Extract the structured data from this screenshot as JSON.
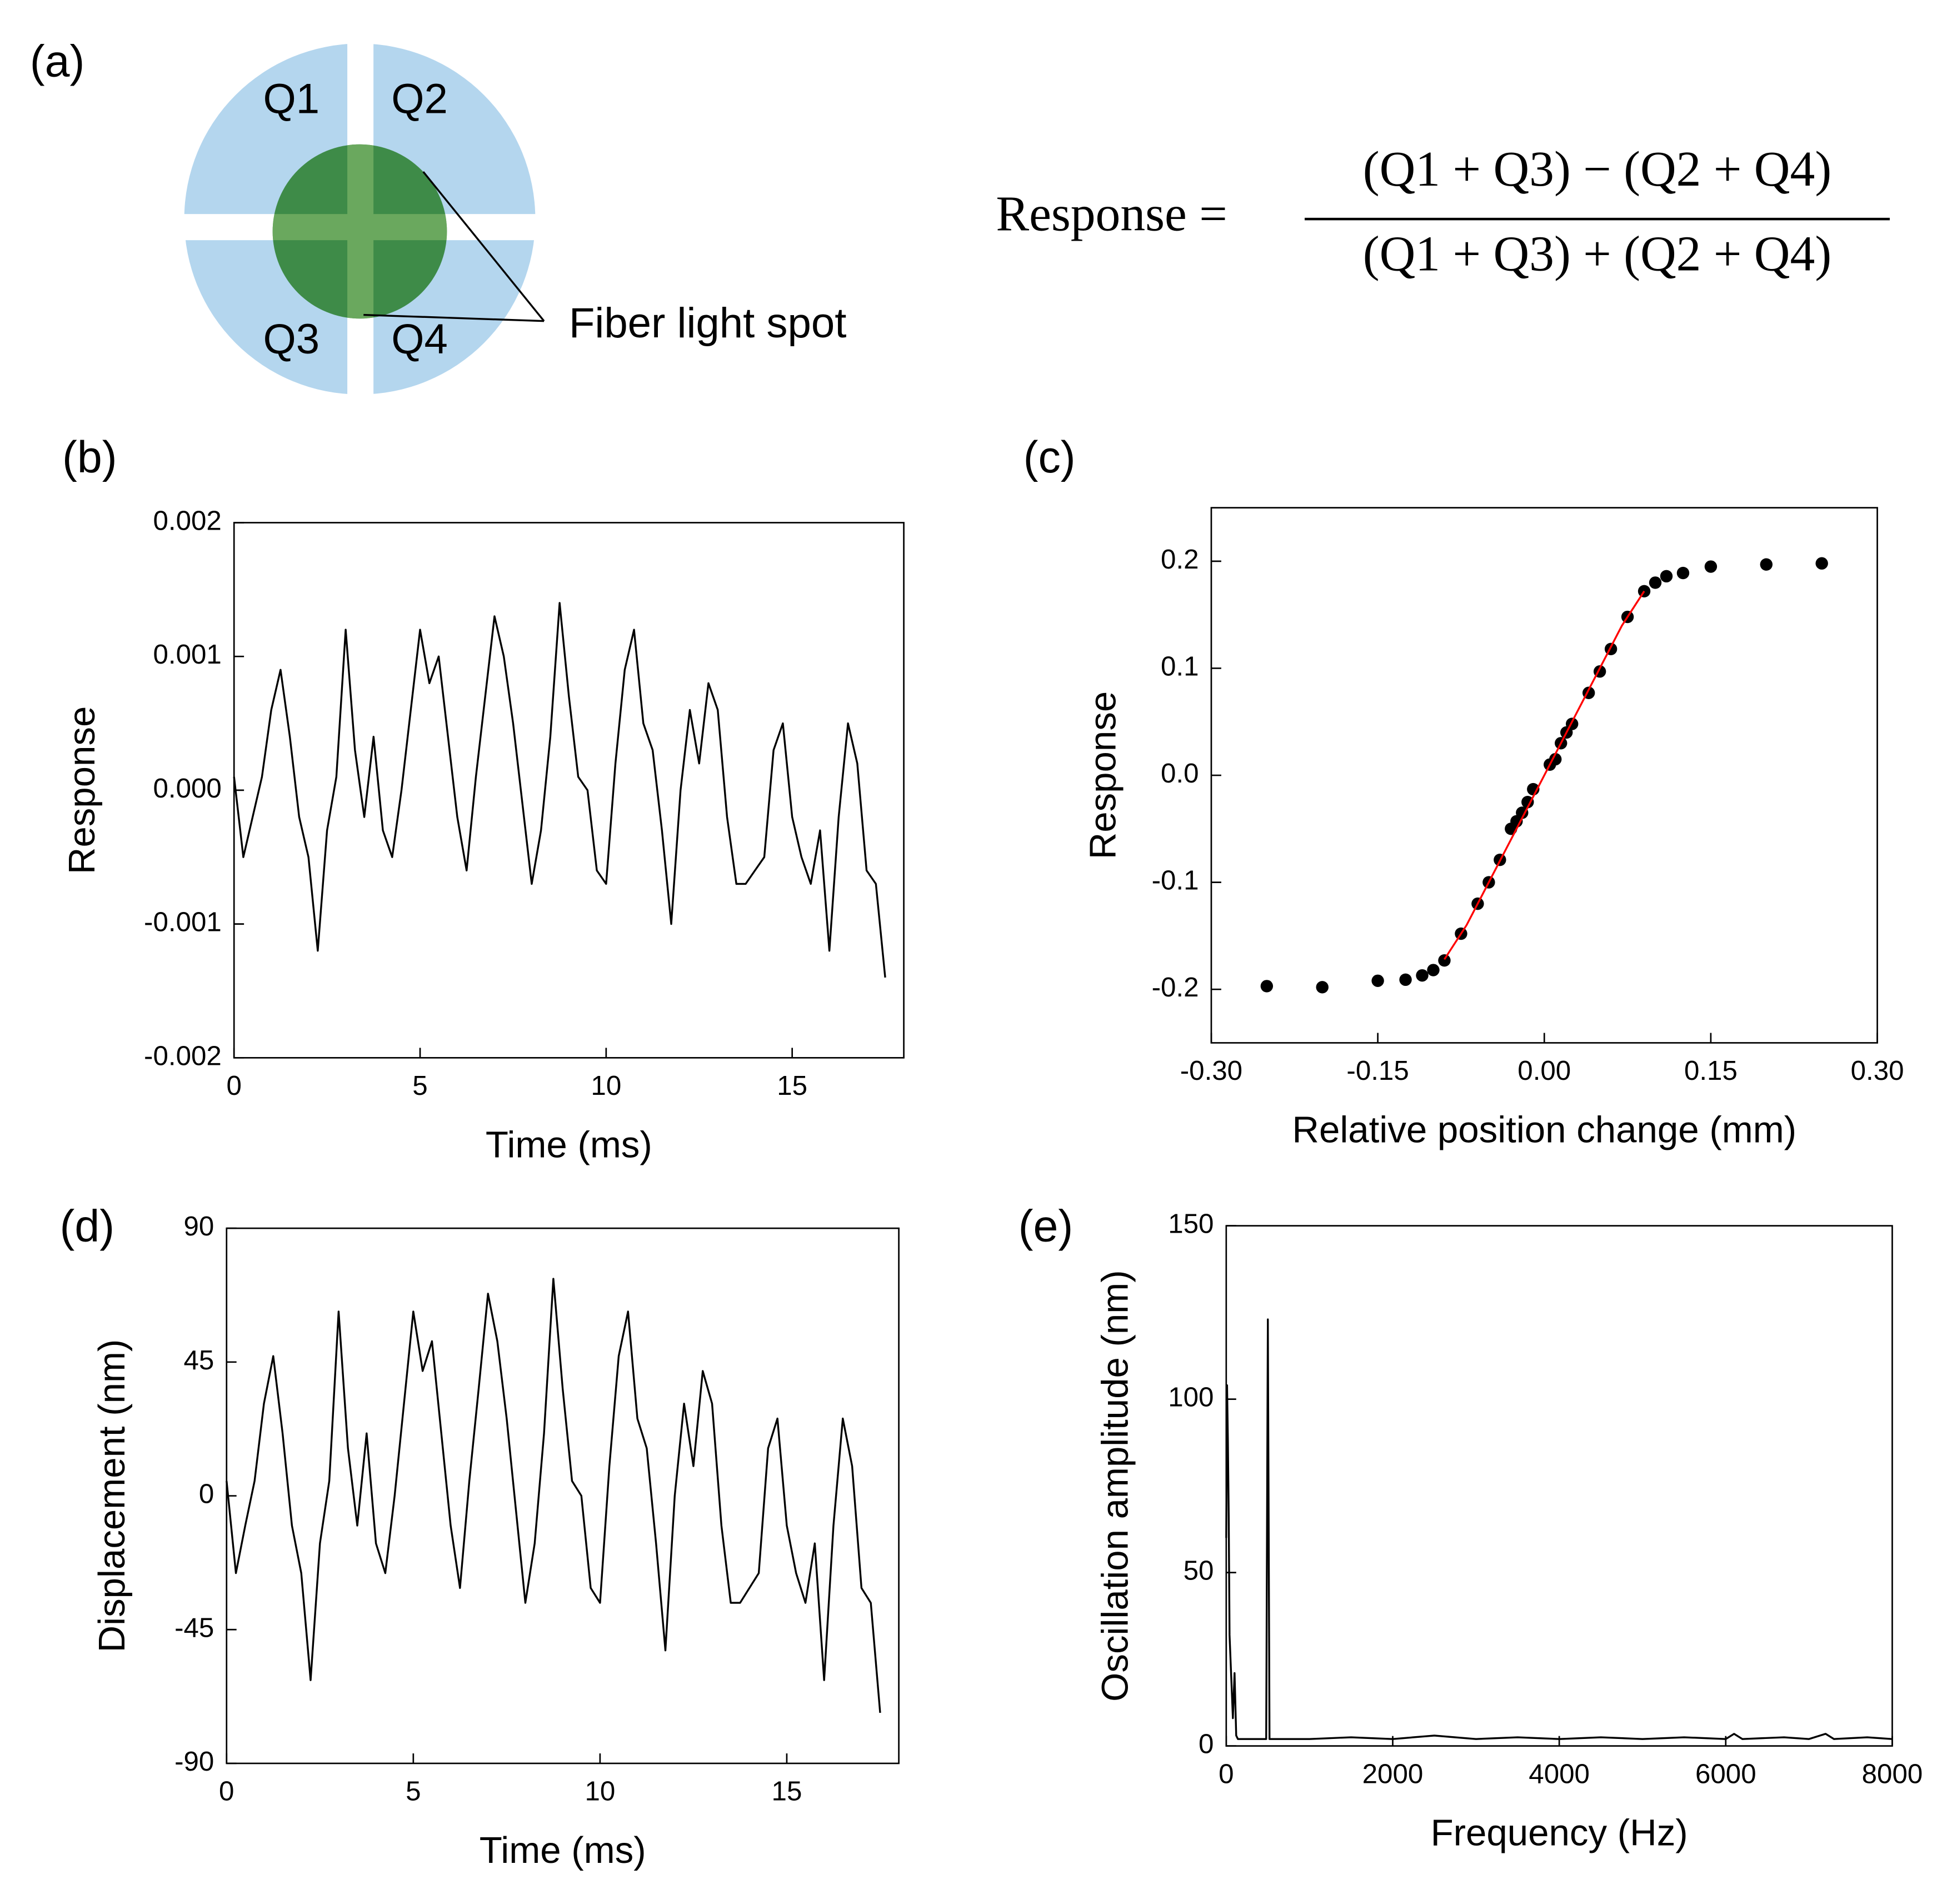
{
  "diagram": {
    "panel_label": "(a)",
    "quadrants": [
      "Q1",
      "Q2",
      "Q3",
      "Q4"
    ],
    "spot_label": "Fiber light spot",
    "formula": {
      "lhs": "Response =",
      "numerator": "(Q1 + Q3) − (Q2 + Q4)",
      "denominator": "(Q1 + Q3) + (Q2 + Q4)"
    }
  },
  "chart_data": [
    {
      "type": "line",
      "panel_label": "(b)",
      "x_label": "Time (ms)",
      "y_label": "Response",
      "color": "#000000",
      "xlim": [
        0,
        18
      ],
      "xticks": [
        0,
        5,
        10,
        15
      ],
      "ylim": [
        -0.002,
        0.002
      ],
      "yticks": [
        -0.002,
        -0.001,
        {
          "value": 0,
          "label": "0.000"
        },
        0.001,
        0.002
      ],
      "x": [
        0,
        0.25,
        0.5,
        0.75,
        1,
        1.25,
        1.5,
        1.75,
        2,
        2.25,
        2.5,
        2.75,
        3,
        3.25,
        3.5,
        3.75,
        4,
        4.25,
        4.5,
        4.75,
        5,
        5.25,
        5.5,
        5.75,
        6,
        6.25,
        6.5,
        6.75,
        7,
        7.25,
        7.5,
        7.75,
        8,
        8.25,
        8.5,
        8.75,
        9,
        9.25,
        9.5,
        9.75,
        10,
        10.25,
        10.5,
        10.75,
        11,
        11.25,
        11.5,
        11.75,
        12,
        12.25,
        12.5,
        12.75,
        13,
        13.25,
        13.5,
        13.75,
        14,
        14.25,
        14.5,
        14.75,
        15,
        15.25,
        15.5,
        15.75,
        16,
        16.25,
        16.5,
        16.75,
        17,
        17.25,
        17.5
      ],
      "values": [
        0.0001,
        -0.0005,
        -0.0002,
        0.0001,
        0.0006,
        0.0009,
        0.0004,
        -0.0002,
        -0.0005,
        -0.0012,
        -0.0003,
        0.0001,
        0.0012,
        0.0003,
        -0.0002,
        0.0004,
        -0.0003,
        -0.0005,
        0,
        0.0006,
        0.0012,
        0.0008,
        0.001,
        0.0004,
        -0.0002,
        -0.0006,
        0.0001,
        0.0007,
        0.0013,
        0.001,
        0.0005,
        -0.0001,
        -0.0007,
        -0.0003,
        0.0004,
        0.0014,
        0.0007,
        0.0001,
        0,
        -0.0006,
        -0.0007,
        0.0002,
        0.0009,
        0.0012,
        0.0005,
        0.0003,
        -0.0003,
        -0.001,
        0,
        0.0006,
        0.0002,
        0.0008,
        0.0006,
        -0.0002,
        -0.0007,
        -0.0007,
        -0.0006,
        -0.0005,
        0.0003,
        0.0005,
        -0.0002,
        -0.0005,
        -0.0007,
        -0.0003,
        -0.0012,
        -0.0002,
        0.0005,
        0.0002,
        -0.0006,
        -0.0007,
        -0.0014
      ]
    },
    {
      "type": "scatter",
      "panel_label": "(c)",
      "x_label": "Relative position change (mm)",
      "y_label": "Response",
      "xlim": [
        -0.3,
        0.3
      ],
      "xticks": [
        {
          "value": -0.3,
          "label": "-0.30"
        },
        {
          "value": -0.15,
          "label": "-0.15"
        },
        {
          "value": 0,
          "label": "0.00"
        },
        {
          "value": 0.15,
          "label": "0.15"
        },
        {
          "value": 0.3,
          "label": "0.30"
        }
      ],
      "ylim": [
        -0.25,
        0.25
      ],
      "yticks": [
        -0.2,
        -0.1,
        {
          "value": 0,
          "label": "0.0"
        },
        0.1,
        0.2
      ],
      "series": [
        {
          "style": "markers",
          "color": "#000000",
          "x": [
            -0.25,
            -0.2,
            -0.15,
            -0.125,
            -0.11,
            -0.1,
            -0.09,
            -0.075,
            -0.06,
            -0.05,
            -0.04,
            -0.03,
            -0.025,
            -0.02,
            -0.015,
            -0.01,
            0.005,
            0.01,
            0.015,
            0.02,
            0.025,
            0.04,
            0.05,
            0.06,
            0.075,
            0.09,
            0.1,
            0.11,
            0.125,
            0.15,
            0.2,
            0.25
          ],
          "values": [
            -0.197,
            -0.198,
            -0.192,
            -0.191,
            -0.187,
            -0.182,
            -0.173,
            -0.148,
            -0.12,
            -0.1,
            -0.079,
            -0.05,
            -0.043,
            -0.035,
            -0.025,
            -0.013,
            0.01,
            0.015,
            0.03,
            0.04,
            0.048,
            0.077,
            0.097,
            0.118,
            0.148,
            0.172,
            0.18,
            0.186,
            0.189,
            0.195,
            0.197,
            0.198
          ]
        },
        {
          "style": "line",
          "color": "#ff0000",
          "x": [
            -0.09,
            -0.07,
            0.07,
            0.09
          ],
          "values": [
            -0.172,
            -0.14,
            0.14,
            0.172
          ]
        }
      ]
    },
    {
      "type": "line",
      "panel_label": "(d)",
      "x_label": "Time (ms)",
      "y_label": "Displacement (nm)",
      "color": "#000000",
      "xlim": [
        0,
        18
      ],
      "xticks": [
        0,
        5,
        10,
        15
      ],
      "ylim": [
        -90,
        90
      ],
      "yticks": [
        -90,
        -45,
        0,
        45,
        90
      ],
      "x": [
        0,
        0.25,
        0.5,
        0.75,
        1,
        1.25,
        1.5,
        1.75,
        2,
        2.25,
        2.5,
        2.75,
        3,
        3.25,
        3.5,
        3.75,
        4,
        4.25,
        4.5,
        4.75,
        5,
        5.25,
        5.5,
        5.75,
        6,
        6.25,
        6.5,
        6.75,
        7,
        7.25,
        7.5,
        7.75,
        8,
        8.25,
        8.5,
        8.75,
        9,
        9.25,
        9.5,
        9.75,
        10,
        10.25,
        10.5,
        10.75,
        11,
        11.25,
        11.5,
        11.75,
        12,
        12.25,
        12.5,
        12.75,
        13,
        13.25,
        13.5,
        13.75,
        14,
        14.25,
        14.5,
        14.75,
        15,
        15.25,
        15.5,
        15.75,
        16,
        16.25,
        16.5,
        16.75,
        17,
        17.25,
        17.5
      ],
      "values": [
        5,
        -26,
        -10,
        5,
        31,
        47,
        21,
        -10,
        -26,
        -62,
        -16,
        5,
        62,
        16,
        -10,
        21,
        -16,
        -26,
        0,
        31,
        62,
        42,
        52,
        21,
        -10,
        -31,
        5,
        36,
        68,
        52,
        26,
        -5,
        -36,
        -16,
        21,
        73,
        36,
        5,
        0,
        -31,
        -36,
        10,
        47,
        62,
        26,
        16,
        -16,
        -52,
        0,
        31,
        10,
        42,
        31,
        -10,
        -36,
        -36,
        -31,
        -26,
        16,
        26,
        -10,
        -26,
        -36,
        -16,
        -62,
        -10,
        26,
        10,
        -31,
        -36,
        -73
      ]
    },
    {
      "type": "line",
      "panel_label": "(e)",
      "x_label": "Frequency (Hz)",
      "y_label": "Oscillation amplitude (nm)",
      "color": "#000000",
      "xlim": [
        0,
        8000
      ],
      "xticks": [
        0,
        2000,
        4000,
        6000,
        8000
      ],
      "ylim": [
        0,
        150
      ],
      "yticks": [
        0,
        50,
        100,
        150
      ],
      "x": [
        0,
        10,
        20,
        30,
        40,
        60,
        80,
        100,
        120,
        140,
        480,
        500,
        520,
        1000,
        1500,
        2000,
        2500,
        3000,
        3500,
        4000,
        4500,
        5000,
        5500,
        6000,
        6100,
        6200,
        6700,
        7000,
        7200,
        7300,
        7700,
        8000
      ],
      "values": [
        60,
        104,
        88,
        66,
        32,
        20,
        8,
        21,
        3,
        2,
        2,
        123,
        2,
        2,
        2.5,
        2,
        3,
        2,
        2.5,
        2,
        2.5,
        2,
        2.5,
        2,
        3.5,
        2,
        2.5,
        2,
        3.5,
        2,
        2.5,
        2
      ]
    }
  ]
}
